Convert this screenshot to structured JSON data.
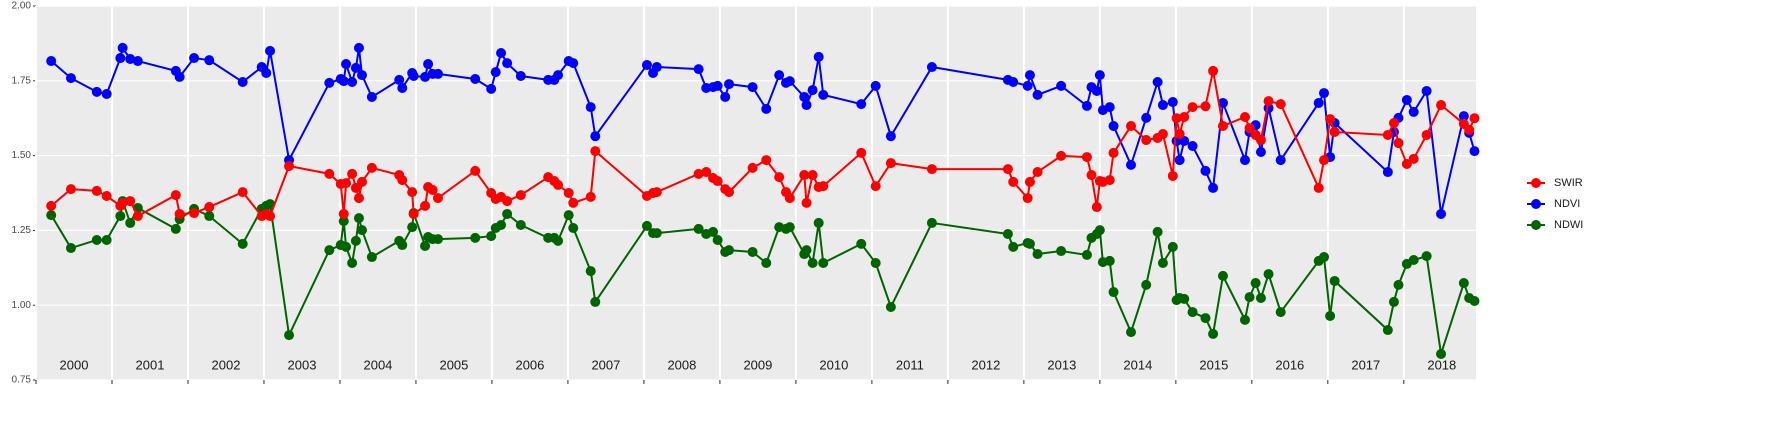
{
  "chart_data": {
    "type": "line",
    "x": [
      2000.2,
      2000.46,
      2000.8,
      2000.93,
      2001.11,
      2001.14,
      2001.24,
      2001.34,
      2001.84,
      2001.89,
      2002.08,
      2002.28,
      2002.72,
      2002.97,
      2003.03,
      2003.08,
      2003.33,
      2003.86,
      2004.01,
      2004.05,
      2004.08,
      2004.16,
      2004.21,
      2004.25,
      2004.29,
      2004.42,
      2004.78,
      2004.82,
      2004.95,
      2004.97,
      2005.12,
      2005.16,
      2005.22,
      2005.29,
      2005.78,
      2005.99,
      2006.05,
      2006.12,
      2006.2,
      2006.38,
      2006.74,
      2006.82,
      2006.87,
      2007.01,
      2007.07,
      2007.3,
      2007.36,
      2008.04,
      2008.12,
      2008.17,
      2008.72,
      2008.82,
      2008.91,
      2008.97,
      2009.07,
      2009.12,
      2009.43,
      2009.61,
      2009.78,
      2009.87,
      2009.92,
      2010.11,
      2010.14,
      2010.22,
      2010.3,
      2010.36,
      2010.86,
      2011.05,
      2011.25,
      2011.79,
      2012.79,
      2012.86,
      2013.05,
      2013.08,
      2013.18,
      2013.49,
      2013.83,
      2013.89,
      2013.96,
      2014.0,
      2014.04,
      2014.13,
      2014.18,
      2014.41,
      2014.61,
      2014.76,
      2014.83,
      2014.96,
      2015.01,
      2015.05,
      2015.11,
      2015.22,
      2015.39,
      2015.49,
      2015.62,
      2015.91,
      2015.97,
      2016.05,
      2016.12,
      2016.22,
      2016.38,
      2016.88,
      2016.95,
      2017.03,
      2017.09,
      2017.79,
      2017.87,
      2017.93,
      2018.04,
      2018.13,
      2018.3,
      2018.49,
      2018.79,
      2018.86,
      2018.93
    ],
    "series": [
      {
        "name": "SWIR",
        "color": "#ff0000",
        "values": [
          1.332,
          1.388,
          1.382,
          1.365,
          1.332,
          1.342,
          1.348,
          1.298,
          1.368,
          1.305,
          1.308,
          1.328,
          1.378,
          1.298,
          1.305,
          1.298,
          1.465,
          1.439,
          1.405,
          1.305,
          1.408,
          1.439,
          1.392,
          1.358,
          1.412,
          1.459,
          1.435,
          1.418,
          1.378,
          1.305,
          1.332,
          1.395,
          1.385,
          1.358,
          1.449,
          1.375,
          1.355,
          1.362,
          1.348,
          1.368,
          1.428,
          1.415,
          1.402,
          1.375,
          1.342,
          1.362,
          1.515,
          1.365,
          1.375,
          1.378,
          1.439,
          1.445,
          1.425,
          1.415,
          1.388,
          1.378,
          1.459,
          1.485,
          1.428,
          1.378,
          1.358,
          1.435,
          1.342,
          1.435,
          1.395,
          1.398,
          1.509,
          1.398,
          1.475,
          1.455,
          1.455,
          1.412,
          1.358,
          1.412,
          1.445,
          1.499,
          1.495,
          1.435,
          1.328,
          1.415,
          1.412,
          1.418,
          1.509,
          1.599,
          1.552,
          1.559,
          1.572,
          1.432,
          1.625,
          1.572,
          1.629,
          1.662,
          1.665,
          1.783,
          1.599,
          1.629,
          1.592,
          1.569,
          1.552,
          1.682,
          1.672,
          1.392,
          1.485,
          1.622,
          1.579,
          1.569,
          1.609,
          1.542,
          1.472,
          1.489,
          1.569,
          1.669,
          1.606,
          1.586,
          1.625
        ]
      },
      {
        "name": "NDVI",
        "color": "#0000ff",
        "values": [
          1.816,
          1.759,
          1.713,
          1.706,
          1.826,
          1.86,
          1.823,
          1.816,
          1.783,
          1.763,
          1.826,
          1.819,
          1.746,
          1.796,
          1.776,
          1.85,
          1.485,
          1.743,
          1.756,
          1.749,
          1.806,
          1.746,
          1.793,
          1.86,
          1.769,
          1.696,
          1.753,
          1.726,
          1.776,
          1.766,
          1.763,
          1.806,
          1.773,
          1.773,
          1.756,
          1.723,
          1.779,
          1.843,
          1.809,
          1.766,
          1.753,
          1.753,
          1.769,
          1.816,
          1.809,
          1.662,
          1.565,
          1.803,
          1.776,
          1.796,
          1.789,
          1.726,
          1.729,
          1.733,
          1.696,
          1.739,
          1.729,
          1.656,
          1.769,
          1.743,
          1.749,
          1.696,
          1.669,
          1.719,
          1.83,
          1.703,
          1.672,
          1.733,
          1.565,
          1.796,
          1.753,
          1.746,
          1.733,
          1.769,
          1.703,
          1.733,
          1.666,
          1.729,
          1.716,
          1.769,
          1.652,
          1.662,
          1.599,
          1.469,
          1.626,
          1.746,
          1.669,
          1.679,
          1.549,
          1.485,
          1.549,
          1.532,
          1.449,
          1.392,
          1.676,
          1.485,
          1.579,
          1.602,
          1.512,
          1.659,
          1.485,
          1.676,
          1.709,
          1.495,
          1.609,
          1.445,
          1.579,
          1.626,
          1.686,
          1.646,
          1.716,
          1.305,
          1.632,
          1.576,
          1.515
        ]
      },
      {
        "name": "NDWI",
        "color": "#006400",
        "values": [
          1.301,
          1.191,
          1.218,
          1.218,
          1.298,
          1.348,
          1.275,
          1.325,
          1.255,
          1.288,
          1.322,
          1.298,
          1.205,
          1.322,
          1.332,
          1.338,
          0.9,
          1.184,
          1.201,
          1.281,
          1.195,
          1.141,
          1.215,
          1.291,
          1.251,
          1.161,
          1.215,
          1.201,
          1.261,
          1.308,
          1.198,
          1.228,
          1.221,
          1.221,
          1.225,
          1.231,
          1.258,
          1.268,
          1.305,
          1.268,
          1.225,
          1.225,
          1.215,
          1.301,
          1.258,
          1.114,
          1.011,
          1.265,
          1.241,
          1.241,
          1.255,
          1.238,
          1.245,
          1.218,
          1.178,
          1.184,
          1.178,
          1.141,
          1.261,
          1.255,
          1.261,
          1.171,
          1.184,
          1.141,
          1.275,
          1.141,
          1.205,
          1.141,
          0.994,
          1.275,
          1.238,
          1.195,
          1.208,
          1.205,
          1.171,
          1.181,
          1.168,
          1.225,
          1.238,
          1.251,
          1.144,
          1.148,
          1.044,
          0.91,
          1.068,
          1.245,
          1.141,
          1.195,
          1.017,
          1.024,
          1.021,
          0.977,
          0.957,
          0.904,
          1.098,
          0.951,
          1.027,
          1.074,
          1.024,
          1.104,
          0.977,
          1.148,
          1.161,
          0.964,
          1.081,
          0.917,
          1.011,
          1.068,
          1.138,
          1.151,
          1.164,
          0.837,
          1.074,
          1.024,
          1.014
        ]
      }
    ],
    "xlim": [
      2000,
      2018.95
    ],
    "xticks": [
      2000,
      2001,
      2002,
      2003,
      2004,
      2005,
      2006,
      2007,
      2008,
      2009,
      2010,
      2011,
      2012,
      2013,
      2014,
      2015,
      2016,
      2017,
      2018
    ],
    "ylim": [
      0.75,
      2.0
    ],
    "yticks": [
      {
        "value": 0.75,
        "label": "0.75"
      },
      {
        "value": 1.0,
        "label": "1.00"
      },
      {
        "value": 1.25,
        "label": "1.25"
      },
      {
        "value": 1.5,
        "label": "1.50"
      },
      {
        "value": 1.75,
        "label": "1.75"
      },
      {
        "value": 2.0,
        "label": "2.00"
      }
    ],
    "grid": true,
    "legend": "right"
  }
}
